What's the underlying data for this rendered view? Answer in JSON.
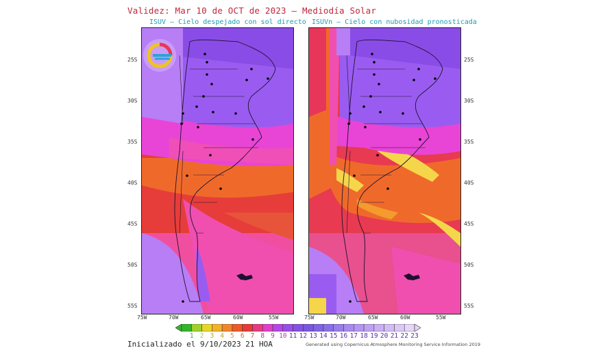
{
  "header": {
    "title": "Validez: Mar 10 de OCT de 2023 – Mediodía Solar",
    "left_subtitle": "ISUV – Cielo despejado con sol directo",
    "right_subtitle": "ISUVn – Cielo con nubosidad pronosticada"
  },
  "map": {
    "lat_labels": [
      "25S",
      "30S",
      "35S",
      "40S",
      "45S",
      "50S",
      "55S"
    ],
    "lon_labels": [
      "75W",
      "70W",
      "65W",
      "60W",
      "55W"
    ],
    "colors": {
      "violet_light": "#b77ef5",
      "violet": "#9a5cf0",
      "purple": "#7d3fd6",
      "magenta": "#e83fe0",
      "pink": "#f25fa0",
      "red": "#e43a3a",
      "orange": "#ef6a2a",
      "orange_light": "#f59b2e",
      "yellow": "#f5d64a"
    }
  },
  "colorbar": {
    "values": [
      "1",
      "2",
      "3",
      "4",
      "5",
      "6",
      "7",
      "8",
      "9",
      "10",
      "11",
      "12",
      "13",
      "14",
      "15",
      "16",
      "17",
      "18",
      "19",
      "20",
      "21",
      "22",
      "23"
    ],
    "colors": [
      "#35b52a",
      "#9fd12a",
      "#e8d52a",
      "#f2b22a",
      "#f0862a",
      "#ec5a2a",
      "#e63b36",
      "#e83a80",
      "#e040c8",
      "#b845e6",
      "#9a4ee6",
      "#8452e0",
      "#7a58de",
      "#8064e2",
      "#8a70e6",
      "#9a7eea",
      "#a88aec",
      "#b496ee",
      "#bea2f0",
      "#c8b0f2",
      "#d2bcf4",
      "#dcc8f6",
      "#e6d6f8"
    ]
  },
  "footer": {
    "init_text": "Inicializado el 9/10/2023 21 HOA",
    "credit": "Generated using Copernicus Atmosphere Monitoring Service Information 2019"
  },
  "logo": {
    "icon": "smn-logo-icon"
  }
}
